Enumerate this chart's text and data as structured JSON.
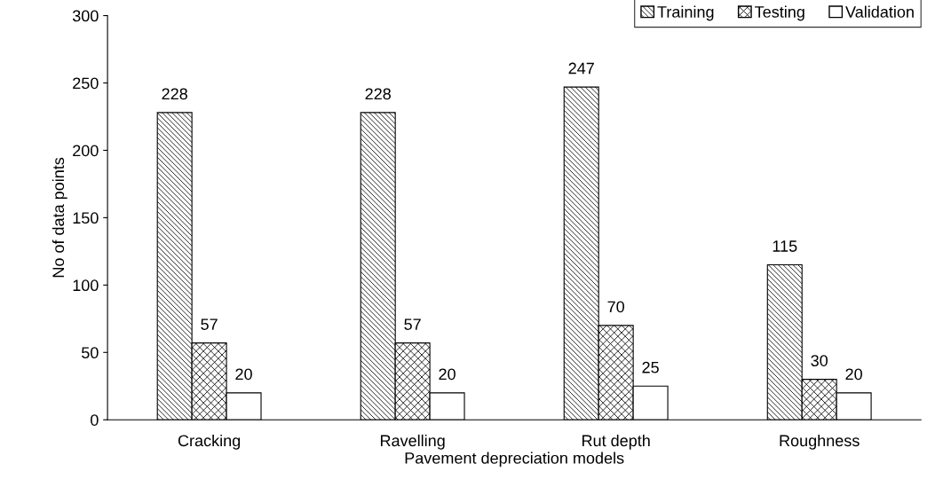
{
  "chart_data": {
    "type": "bar",
    "xlabel": "Pavement depreciation models",
    "ylabel": "No of data points",
    "categories": [
      "Cracking",
      "Ravelling",
      "Rut depth",
      "Roughness"
    ],
    "series": [
      {
        "name": "Training",
        "color": "#000000",
        "values": [
          228,
          228,
          247,
          115
        ]
      },
      {
        "name": "Testing",
        "color": "#000000",
        "values": [
          57,
          57,
          70,
          30
        ]
      },
      {
        "name": "Validation",
        "color": "#ffffff",
        "values": [
          20,
          20,
          25,
          20
        ]
      }
    ],
    "ylim": [
      0,
      300
    ],
    "yticks": [
      0,
      50,
      100,
      150,
      200,
      250,
      300
    ],
    "grid": false,
    "legend": "top right",
    "data_labels": true
  }
}
